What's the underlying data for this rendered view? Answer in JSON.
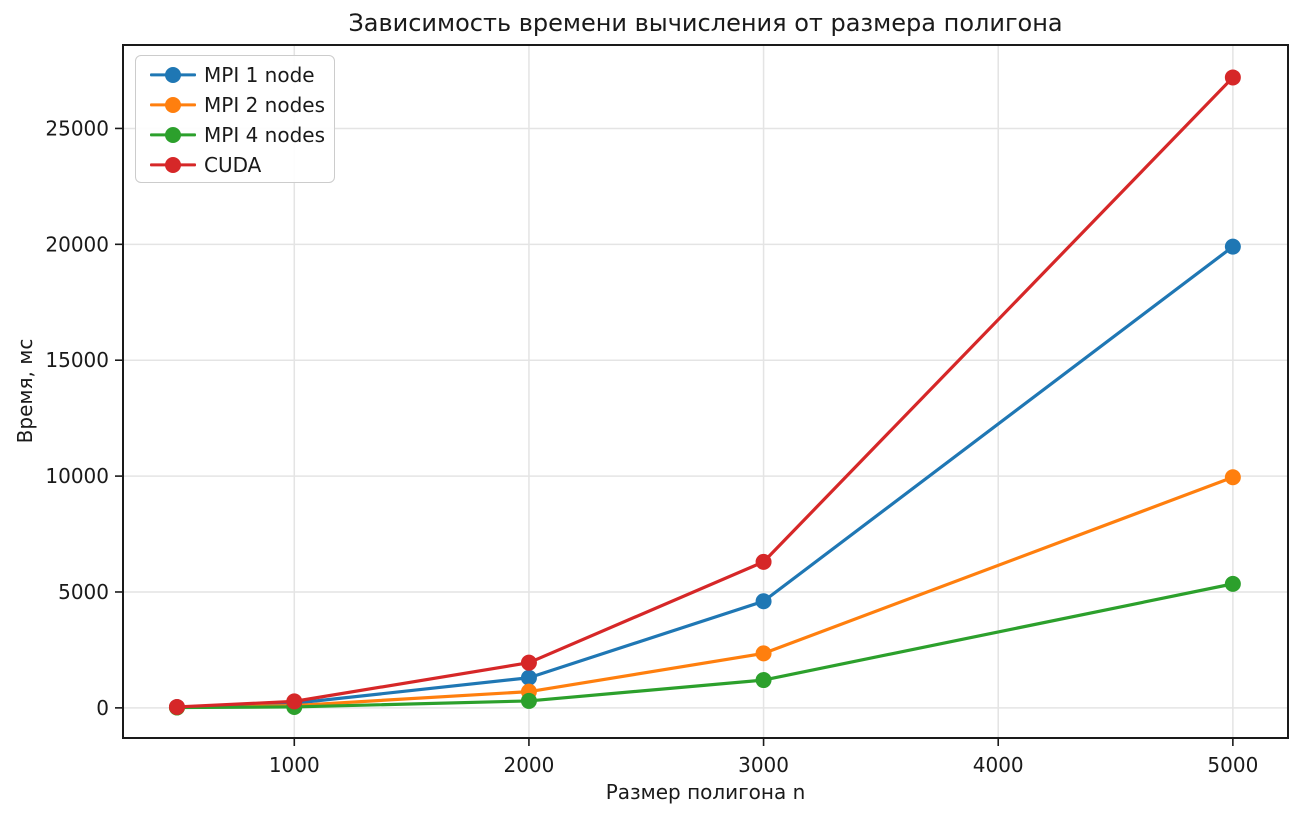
{
  "figure": {
    "background": "#ffffff",
    "text_color": "#1a1a1a",
    "grid_color": "#e4e4e4",
    "spine_color": "#1a1a1a",
    "tick_color": "#1a1a1a",
    "legend_border_color": "#cccccc"
  },
  "chart_data": {
    "type": "line",
    "title": "Зависимость времени вычисления от размера полигона",
    "xlabel": "Размер полигона n",
    "ylabel": "Время, мс",
    "x": [
      500,
      1000,
      2000,
      3000,
      5000
    ],
    "series": [
      {
        "name": "MPI 1 node",
        "color": "#1f77b4",
        "values": [
          30,
          200,
          1300,
          4600,
          19900
        ]
      },
      {
        "name": "MPI 2 nodes",
        "color": "#ff7f0e",
        "values": [
          20,
          100,
          700,
          2350,
          9950
        ]
      },
      {
        "name": "MPI 4 nodes",
        "color": "#2ca02c",
        "values": [
          15,
          40,
          300,
          1200,
          5350
        ]
      },
      {
        "name": "CUDA",
        "color": "#d62728",
        "values": [
          40,
          280,
          1950,
          6300,
          27200
        ]
      }
    ],
    "xticks": [
      1000,
      2000,
      3000,
      4000,
      5000
    ],
    "yticks": [
      0,
      5000,
      10000,
      15000,
      20000,
      25000
    ],
    "xlim": [
      270,
      5235
    ],
    "ylim": [
      -1300,
      28600
    ],
    "grid": true,
    "legend_position": "upper left"
  }
}
